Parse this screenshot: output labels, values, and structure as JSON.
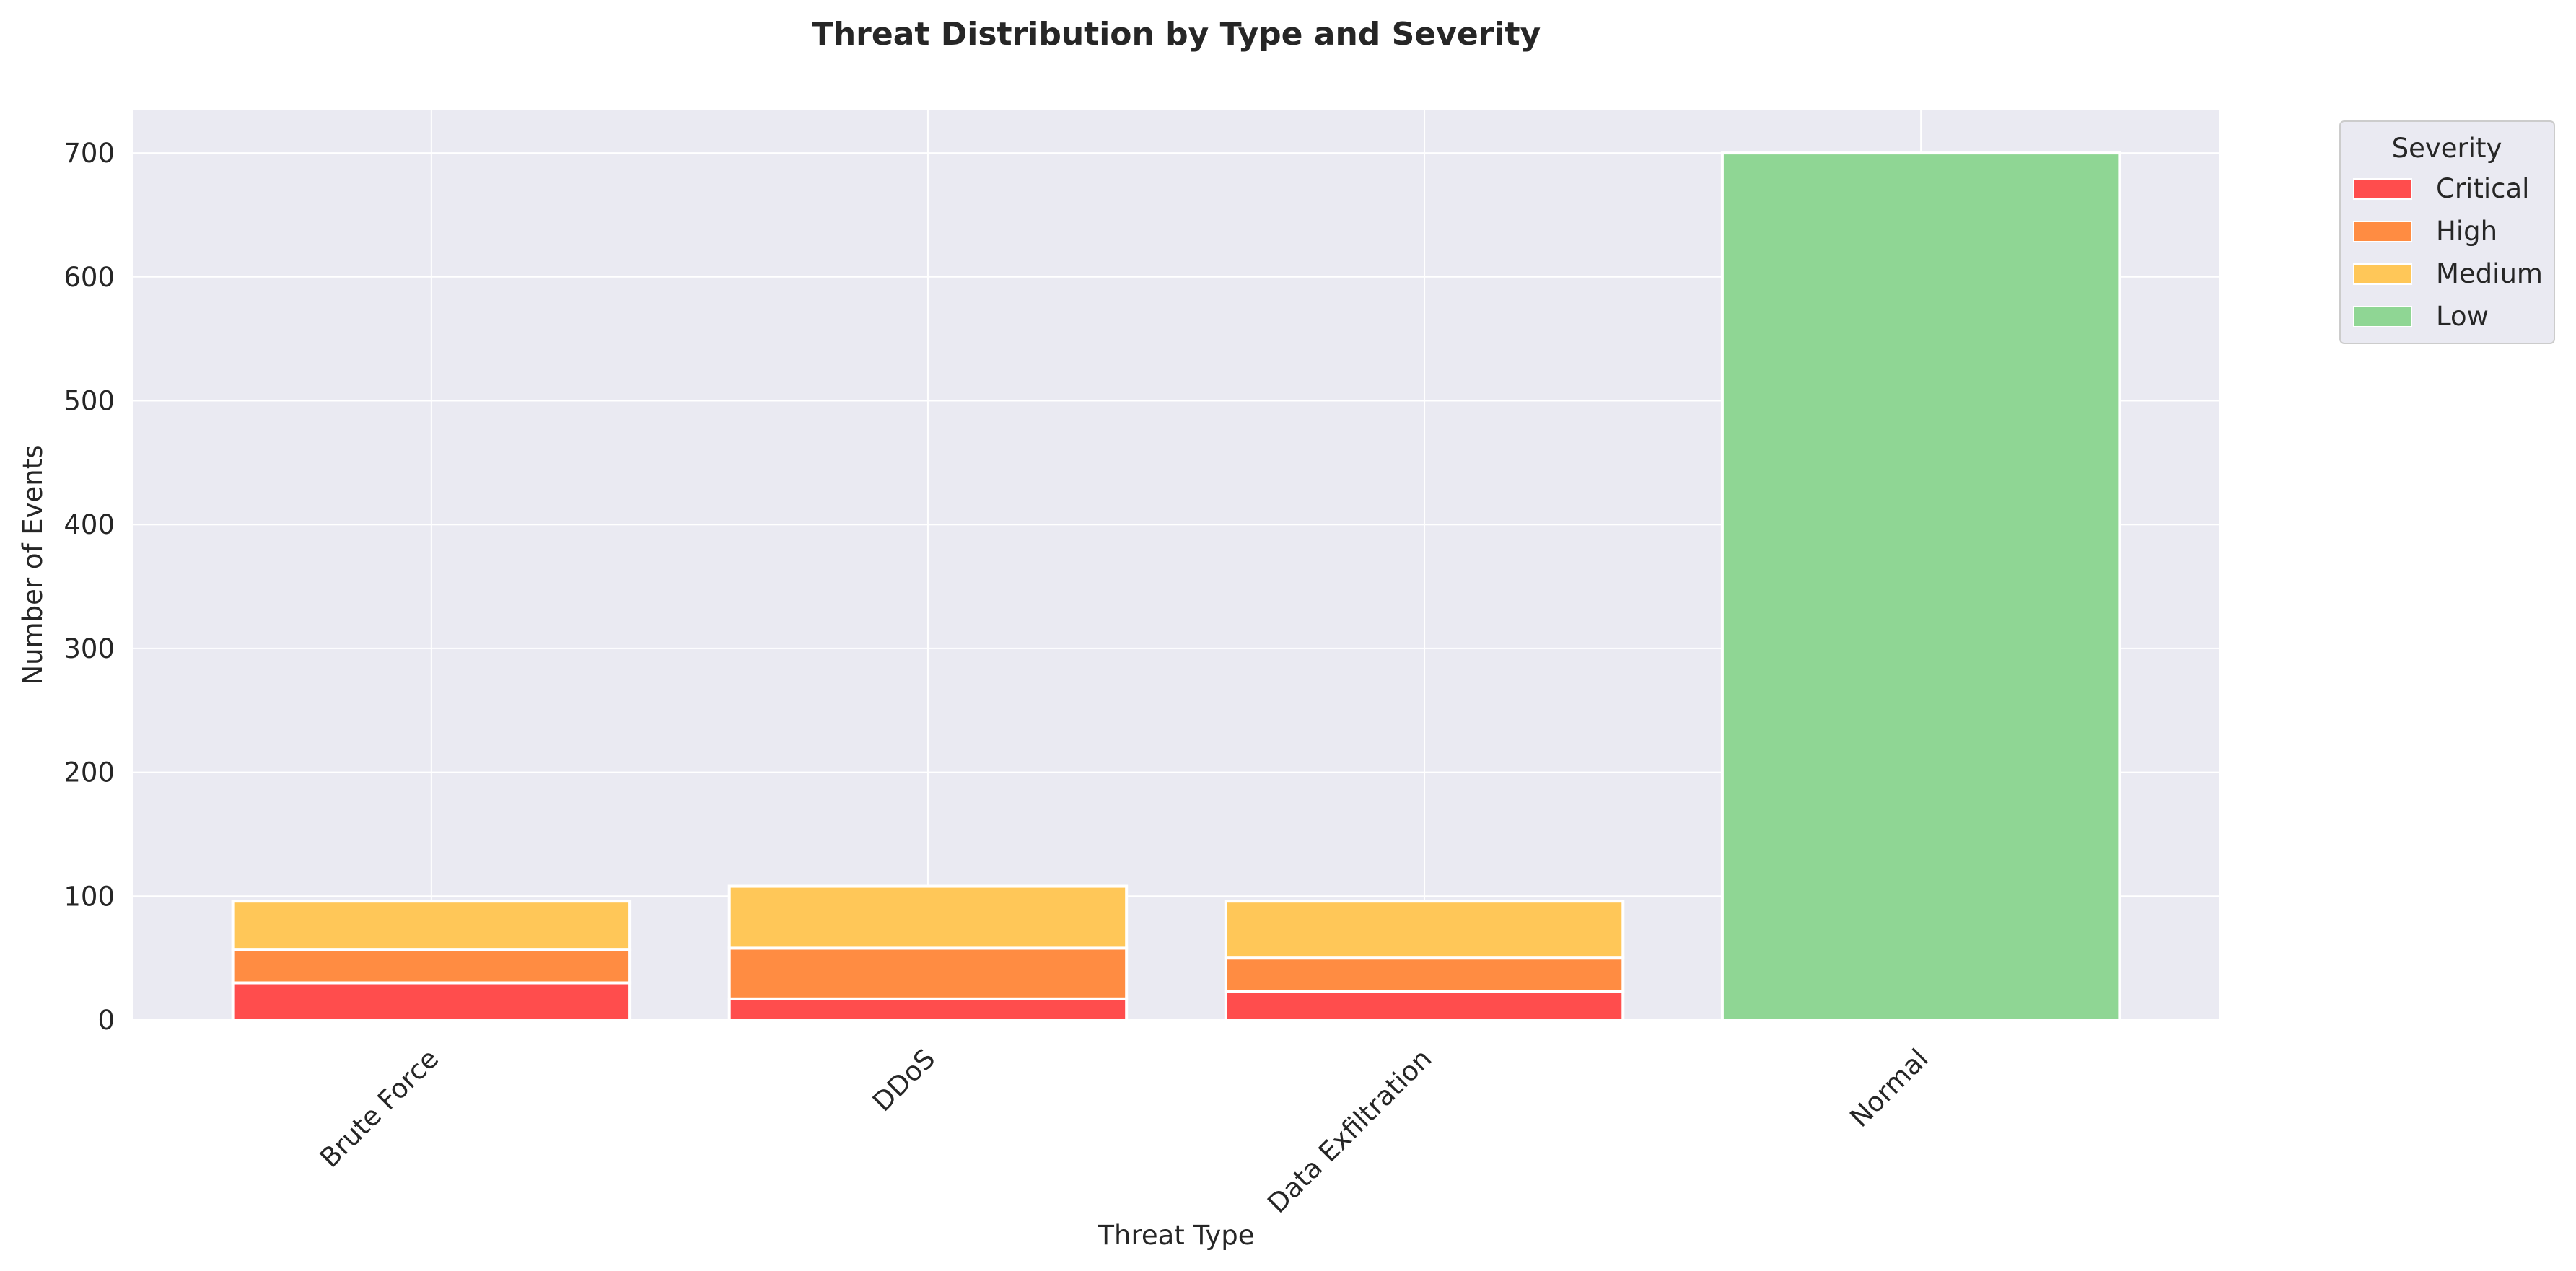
{
  "chart_data": {
    "type": "bar",
    "stacked": true,
    "title": "Threat Distribution by Type and Severity",
    "xlabel": "Threat Type",
    "ylabel": "Number of Events",
    "categories": [
      "Brute Force",
      "DDoS",
      "Data Exfiltration",
      "Normal"
    ],
    "series": [
      {
        "name": "Critical",
        "color": "#ff4d4d",
        "values": [
          30,
          17,
          23,
          0
        ]
      },
      {
        "name": "High",
        "color": "#ff8c42",
        "values": [
          27,
          41,
          27,
          0
        ]
      },
      {
        "name": "Medium",
        "color": "#ffc758",
        "values": [
          39,
          50,
          46,
          0
        ]
      },
      {
        "name": "Low",
        "color": "#8fd694",
        "values": [
          0,
          0,
          0,
          700
        ]
      }
    ],
    "ylim": [
      0,
      735
    ],
    "yticks": [
      "0",
      "100",
      "200",
      "300",
      "400",
      "500",
      "600",
      "700"
    ],
    "legend": {
      "title": "Severity",
      "placement": "outside-top-right"
    },
    "grid": true,
    "background_color": "#eaeaf2"
  }
}
